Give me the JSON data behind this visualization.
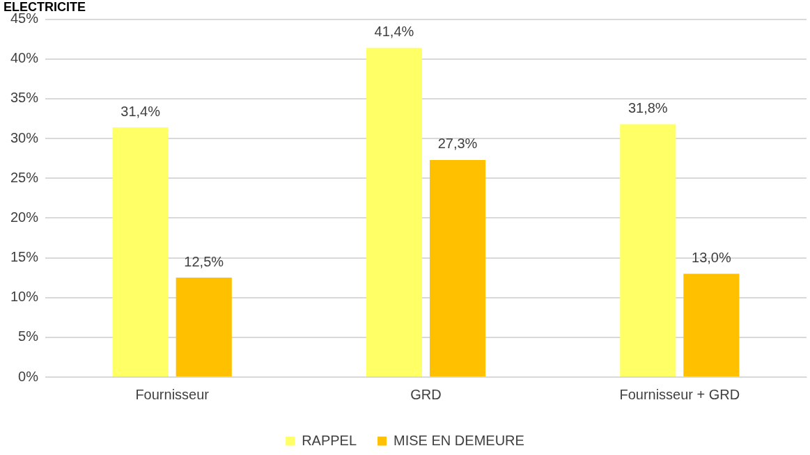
{
  "chart_data": {
    "type": "bar",
    "title": "ELECTRICITE",
    "categories": [
      "Fournisseur",
      "GRD",
      "Fournisseur + GRD"
    ],
    "series": [
      {
        "name": "RAPPEL",
        "color": "#ffff66",
        "values": [
          31.4,
          41.4,
          31.8
        ],
        "value_labels": [
          "31,4%",
          "41,4%",
          "31,8%"
        ]
      },
      {
        "name": "MISE EN DEMEURE",
        "color": "#ffc000",
        "values": [
          12.5,
          27.3,
          13.0
        ],
        "value_labels": [
          "12,5%",
          "27,3%",
          "13,0%"
        ]
      }
    ],
    "ylim": [
      0,
      45
    ],
    "yticks": [
      {
        "value": 0,
        "label": "0%"
      },
      {
        "value": 5,
        "label": "5%"
      },
      {
        "value": 10,
        "label": "10%"
      },
      {
        "value": 15,
        "label": "15%"
      },
      {
        "value": 20,
        "label": "20%"
      },
      {
        "value": 25,
        "label": "25%"
      },
      {
        "value": 30,
        "label": "30%"
      },
      {
        "value": 35,
        "label": "35%"
      },
      {
        "value": 40,
        "label": "40%"
      },
      {
        "value": 45,
        "label": "45%"
      }
    ],
    "grid": "y",
    "legend": "bottom"
  }
}
